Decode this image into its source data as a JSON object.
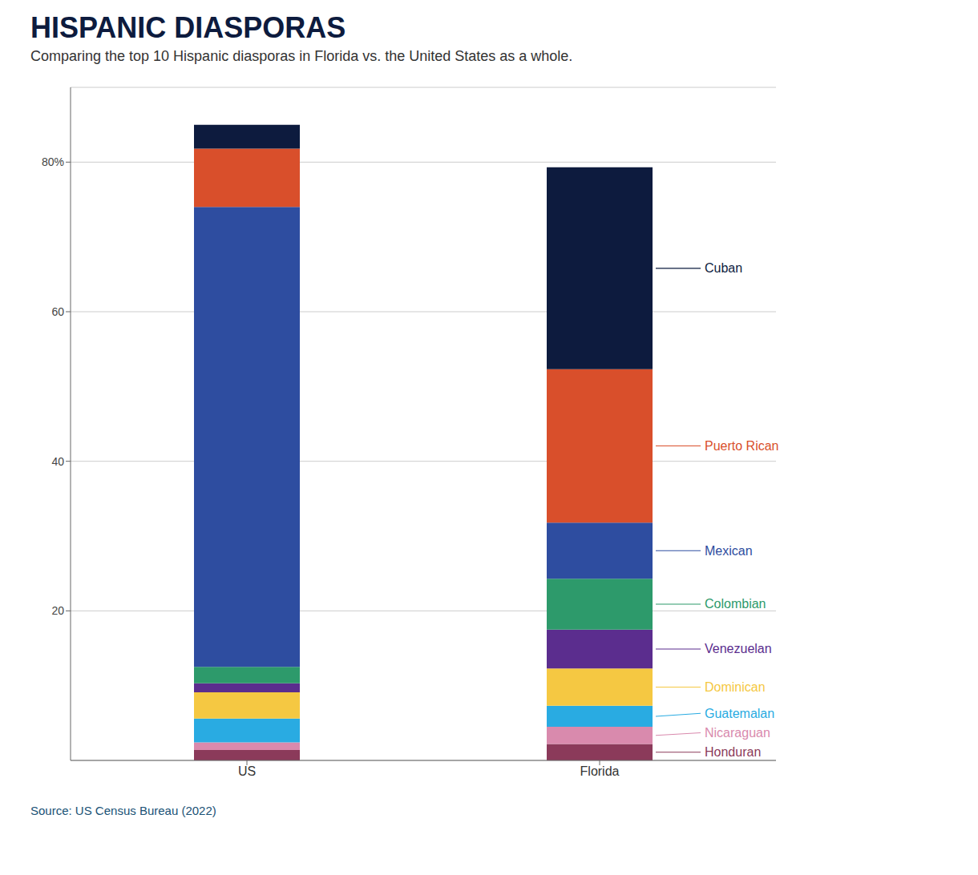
{
  "chart_data": {
    "type": "bar",
    "stacked": true,
    "grid": true,
    "title": "HISPANIC DIASPORAS",
    "subtitle": "Comparing the top 10 Hispanic diasporas in Florida vs. the United States as a whole.",
    "source": "Source: US Census Bureau (2022)",
    "categories": [
      "US",
      "Florida"
    ],
    "series": [
      {
        "name": "Honduran",
        "color": "#8B3A5A",
        "values": [
          1.4,
          2.2
        ]
      },
      {
        "name": "Nicaraguan",
        "color": "#D98AAD",
        "values": [
          1.0,
          2.3
        ]
      },
      {
        "name": "Guatemalan",
        "color": "#29ABE2",
        "values": [
          3.2,
          2.8
        ]
      },
      {
        "name": "Dominican",
        "color": "#F5C842",
        "values": [
          3.5,
          5.0
        ]
      },
      {
        "name": "Venezuelan",
        "color": "#5B2D8E",
        "values": [
          1.2,
          5.2
        ]
      },
      {
        "name": "Colombian",
        "color": "#2D9A6B",
        "values": [
          2.2,
          6.8
        ]
      },
      {
        "name": "Mexican",
        "color": "#2E4DA0",
        "values": [
          61.5,
          7.5
        ]
      },
      {
        "name": "Puerto Rican",
        "color": "#D94F2B",
        "values": [
          7.8,
          20.5
        ]
      },
      {
        "name": "Cuban",
        "color": "#0D1B3E",
        "values": [
          3.2,
          27.0
        ]
      }
    ],
    "ylim": [
      0,
      90
    ],
    "yticks": [
      20,
      40,
      60,
      {
        "value": 80,
        "label": "80%"
      }
    ]
  }
}
